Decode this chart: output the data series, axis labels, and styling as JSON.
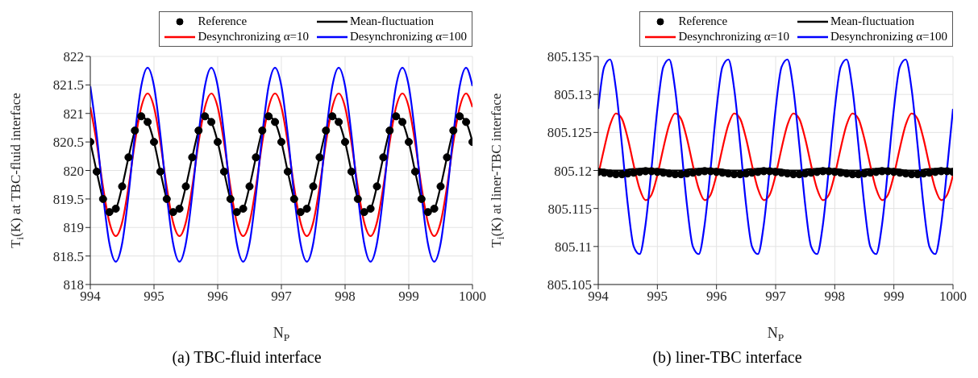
{
  "chart_data": [
    {
      "type": "line",
      "title": "(a)   TBC-fluid interface",
      "xlabel": "N$_{P}$",
      "ylabel": "T$_{i}$(K) at TBC-fluid interface",
      "x": [
        994,
        994.1,
        994.2,
        994.3,
        994.4,
        994.5,
        994.6,
        994.7,
        994.8,
        994.9,
        995,
        995.1,
        995.2,
        995.3,
        995.4,
        995.5,
        995.6,
        995.7,
        995.8,
        995.9,
        996,
        996.1,
        996.2,
        996.3,
        996.4,
        996.5,
        996.6,
        996.7,
        996.8,
        996.9,
        997,
        997.1,
        997.2,
        997.3,
        997.4,
        997.5,
        997.6,
        997.7,
        997.8,
        997.9,
        998,
        998.1,
        998.2,
        998.3,
        998.4,
        998.5,
        998.6,
        998.7,
        998.8,
        998.9,
        999,
        999.1,
        999.2,
        999.3,
        999.4,
        999.5,
        999.6,
        999.7,
        999.8,
        999.9,
        1000
      ],
      "xlim": [
        994,
        1000
      ],
      "xticks": [
        994,
        995,
        996,
        997,
        998,
        999,
        1000
      ],
      "ylim": [
        818,
        822
      ],
      "yticks": [
        818,
        818.5,
        819,
        819.5,
        820,
        820.5,
        821,
        821.5,
        822
      ],
      "grid": true,
      "legend": "top right",
      "series": [
        {
          "name": "Reference",
          "type": "scatter",
          "marker": "circle",
          "color": "#000000",
          "values": [
            820.5,
            819.98,
            819.5,
            819.27,
            819.33,
            819.72,
            820.23,
            820.7,
            820.95,
            820.85,
            820.5,
            819.98,
            819.5,
            819.27,
            819.33,
            819.72,
            820.23,
            820.7,
            820.95,
            820.85,
            820.5,
            819.98,
            819.5,
            819.27,
            819.33,
            819.72,
            820.23,
            820.7,
            820.95,
            820.85,
            820.5,
            819.98,
            819.5,
            819.27,
            819.33,
            819.72,
            820.23,
            820.7,
            820.95,
            820.85,
            820.5,
            819.98,
            819.5,
            819.27,
            819.33,
            819.72,
            820.23,
            820.7,
            820.95,
            820.85,
            820.5,
            819.98,
            819.5,
            819.27,
            819.33,
            819.72,
            820.23,
            820.7,
            820.95,
            820.85,
            820.5
          ]
        },
        {
          "name": "Mean-fluctuation",
          "type": "line",
          "color": "#000000",
          "values": [
            820.5,
            819.98,
            819.5,
            819.27,
            819.33,
            819.72,
            820.23,
            820.7,
            820.95,
            820.85,
            820.5,
            819.98,
            819.5,
            819.27,
            819.33,
            819.72,
            820.23,
            820.7,
            820.95,
            820.85,
            820.5,
            819.98,
            819.5,
            819.27,
            819.33,
            819.72,
            820.23,
            820.7,
            820.95,
            820.85,
            820.5,
            819.98,
            819.5,
            819.27,
            819.33,
            819.72,
            820.23,
            820.7,
            820.95,
            820.85,
            820.5,
            819.98,
            819.5,
            819.27,
            819.33,
            819.72,
            820.23,
            820.7,
            820.95,
            820.85,
            820.5,
            819.98,
            819.5,
            819.27,
            819.33,
            819.72,
            820.23,
            820.7,
            820.95,
            820.85,
            820.5
          ]
        },
        {
          "name": "Desynchronizing α=10",
          "type": "line",
          "color": "#ff0000",
          "values": [
            821.11,
            820.49,
            819.71,
            819.09,
            818.85,
            819.09,
            819.71,
            820.49,
            821.11,
            821.35,
            821.11,
            820.49,
            819.71,
            819.09,
            818.85,
            819.09,
            819.71,
            820.49,
            821.11,
            821.35,
            821.11,
            820.49,
            819.71,
            819.09,
            818.85,
            819.09,
            819.71,
            820.49,
            821.11,
            821.35,
            821.11,
            820.49,
            819.71,
            819.09,
            818.85,
            819.09,
            819.71,
            820.49,
            821.11,
            821.35,
            821.11,
            820.49,
            819.71,
            819.09,
            818.85,
            819.09,
            819.71,
            820.49,
            821.11,
            821.35,
            821.11,
            820.49,
            819.71,
            819.09,
            818.85,
            819.09,
            819.71,
            820.49,
            821.11,
            821.35,
            821.11
          ]
        },
        {
          "name": "Desynchronizing α=100",
          "type": "line",
          "color": "#0000ff",
          "values": [
            821.48,
            820.63,
            819.57,
            818.72,
            818.4,
            818.72,
            819.57,
            820.63,
            821.48,
            821.8,
            821.48,
            820.63,
            819.57,
            818.72,
            818.4,
            818.72,
            819.57,
            820.63,
            821.48,
            821.8,
            821.48,
            820.63,
            819.57,
            818.72,
            818.4,
            818.72,
            819.57,
            820.63,
            821.48,
            821.8,
            821.48,
            820.63,
            819.57,
            818.72,
            818.4,
            818.72,
            819.57,
            820.63,
            821.48,
            821.8,
            821.48,
            820.63,
            819.57,
            818.72,
            818.4,
            818.72,
            819.57,
            820.63,
            821.48,
            821.8,
            821.48,
            820.63,
            819.57,
            818.72,
            818.4,
            818.72,
            819.57,
            820.63,
            821.48,
            821.8,
            821.48
          ]
        }
      ]
    },
    {
      "type": "line",
      "title": "(b)   liner-TBC interface",
      "xlabel": "N$_{P}$",
      "ylabel": "T$_{i}$(K) at liner-TBC interface",
      "x": [
        994,
        994.1,
        994.2,
        994.3,
        994.4,
        994.5,
        994.6,
        994.7,
        994.8,
        994.9,
        995,
        995.1,
        995.2,
        995.3,
        995.4,
        995.5,
        995.6,
        995.7,
        995.8,
        995.9,
        996,
        996.1,
        996.2,
        996.3,
        996.4,
        996.5,
        996.6,
        996.7,
        996.8,
        996.9,
        997,
        997.1,
        997.2,
        997.3,
        997.4,
        997.5,
        997.6,
        997.7,
        997.8,
        997.9,
        998,
        998.1,
        998.2,
        998.3,
        998.4,
        998.5,
        998.6,
        998.7,
        998.8,
        998.9,
        999,
        999.1,
        999.2,
        999.3,
        999.4,
        999.5,
        999.6,
        999.7,
        999.8,
        999.9,
        1000
      ],
      "xlim": [
        994,
        1000
      ],
      "xticks": [
        994,
        995,
        996,
        997,
        998,
        999,
        1000
      ],
      "ylim": [
        805.105,
        805.135
      ],
      "yticks": [
        805.105,
        805.11,
        805.115,
        805.12,
        805.125,
        805.13,
        805.135
      ],
      "grid": true,
      "legend": "top right",
      "series": [
        {
          "name": "Reference",
          "type": "scatter",
          "marker": "circle",
          "color": "#000000",
          "values": [
            805.1198,
            805.1197,
            805.1196,
            805.1195,
            805.1195,
            805.1196,
            805.1197,
            805.1198,
            805.1199,
            805.1199,
            805.1198,
            805.1197,
            805.1196,
            805.1195,
            805.1195,
            805.1196,
            805.1197,
            805.1198,
            805.1199,
            805.1199,
            805.1198,
            805.1197,
            805.1196,
            805.1195,
            805.1195,
            805.1196,
            805.1197,
            805.1198,
            805.1199,
            805.1199,
            805.1198,
            805.1197,
            805.1196,
            805.1195,
            805.1195,
            805.1196,
            805.1197,
            805.1198,
            805.1199,
            805.1199,
            805.1198,
            805.1197,
            805.1196,
            805.1195,
            805.1195,
            805.1196,
            805.1197,
            805.1198,
            805.1199,
            805.1199,
            805.1198,
            805.1197,
            805.1196,
            805.1195,
            805.1195,
            805.1196,
            805.1197,
            805.1198,
            805.1199,
            805.1199,
            805.1198
          ]
        },
        {
          "name": "Mean-fluctuation",
          "type": "line",
          "color": "#000000",
          "values": [
            805.1202,
            805.1201,
            805.12,
            805.12,
            805.12,
            805.1201,
            805.1202,
            805.1202,
            805.1203,
            805.1202,
            805.1202,
            805.1201,
            805.12,
            805.12,
            805.12,
            805.1201,
            805.1202,
            805.1202,
            805.1203,
            805.1202,
            805.1202,
            805.1201,
            805.12,
            805.12,
            805.12,
            805.1201,
            805.1202,
            805.1202,
            805.1203,
            805.1202,
            805.1202,
            805.1201,
            805.12,
            805.12,
            805.12,
            805.1201,
            805.1202,
            805.1202,
            805.1203,
            805.1202,
            805.1202,
            805.1201,
            805.12,
            805.12,
            805.12,
            805.1201,
            805.1202,
            805.1202,
            805.1203,
            805.1202,
            805.1202,
            805.1201,
            805.12,
            805.12,
            805.12,
            805.1201,
            805.1202,
            805.1202,
            805.1203,
            805.1202,
            805.1202
          ]
        },
        {
          "name": "Desynchronizing α=10",
          "type": "line",
          "color": "#ff0000",
          "values": [
            805.1194,
            805.1229,
            805.126,
            805.1275,
            805.1268,
            805.1242,
            805.1207,
            805.1176,
            805.1161,
            805.1168,
            805.1194,
            805.1229,
            805.126,
            805.1275,
            805.1268,
            805.1242,
            805.1207,
            805.1176,
            805.1161,
            805.1168,
            805.1194,
            805.1229,
            805.126,
            805.1275,
            805.1268,
            805.1242,
            805.1207,
            805.1176,
            805.1161,
            805.1168,
            805.1194,
            805.1229,
            805.126,
            805.1275,
            805.1268,
            805.1242,
            805.1207,
            805.1176,
            805.1161,
            805.1168,
            805.1194,
            805.1229,
            805.126,
            805.1275,
            805.1268,
            805.1242,
            805.1207,
            805.1176,
            805.1161,
            805.1168,
            805.1194,
            805.1229,
            805.126,
            805.1275,
            805.1268,
            805.1242,
            805.1207,
            805.1176,
            805.1161,
            805.1168,
            805.1194
          ]
        },
        {
          "name": "Desynchronizing α=100",
          "type": "line",
          "color": "#0000ff",
          "values": [
            805.1281,
            805.1336,
            805.1346,
            805.1307,
            805.1234,
            805.1155,
            805.11,
            805.109,
            805.1129,
            805.1202,
            805.1281,
            805.1336,
            805.1346,
            805.1307,
            805.1234,
            805.1155,
            805.11,
            805.109,
            805.1129,
            805.1202,
            805.1281,
            805.1336,
            805.1346,
            805.1307,
            805.1234,
            805.1155,
            805.11,
            805.109,
            805.1129,
            805.1202,
            805.1281,
            805.1336,
            805.1346,
            805.1307,
            805.1234,
            805.1155,
            805.11,
            805.109,
            805.1129,
            805.1202,
            805.1281,
            805.1336,
            805.1346,
            805.1307,
            805.1234,
            805.1155,
            805.11,
            805.109,
            805.1129,
            805.1202,
            805.1281,
            805.1336,
            805.1346,
            805.1307,
            805.1234,
            805.1155,
            805.11,
            805.109,
            805.1129,
            805.1202,
            805.1281
          ]
        }
      ]
    }
  ]
}
